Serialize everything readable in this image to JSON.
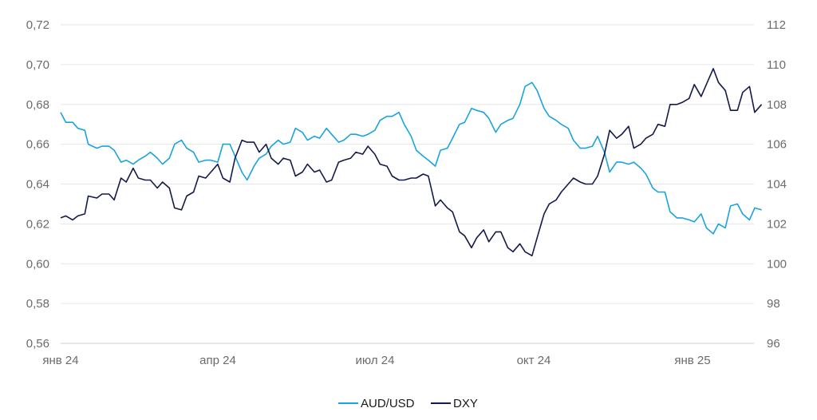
{
  "chart_data": {
    "type": "line",
    "title": "",
    "xlabel": "",
    "ylabel": "",
    "x_ticks": [
      "янв 24",
      "апр 24",
      "июл 24",
      "окт 24",
      "янв 25"
    ],
    "y_left": {
      "ticks": [
        "0,56",
        "0,58",
        "0,60",
        "0,62",
        "0,64",
        "0,66",
        "0,68",
        "0,70",
        "0,72"
      ],
      "lim": [
        0.56,
        0.72
      ]
    },
    "y_right": {
      "ticks": [
        "96",
        "98",
        "100",
        "102",
        "104",
        "106",
        "108",
        "110",
        "112"
      ],
      "lim": [
        96,
        112
      ]
    },
    "grid": true,
    "legend_position": "bottom-center",
    "series": [
      {
        "name": "AUD/USD",
        "axis": "left",
        "color": "#1aa3dd",
        "points": [
          [
            "2024-01-01",
            0.676
          ],
          [
            "2024-01-04",
            0.671
          ],
          [
            "2024-01-08",
            0.671
          ],
          [
            "2024-01-11",
            0.668
          ],
          [
            "2024-01-15",
            0.667
          ],
          [
            "2024-01-17",
            0.66
          ],
          [
            "2024-01-22",
            0.658
          ],
          [
            "2024-01-25",
            0.659
          ],
          [
            "2024-01-29",
            0.659
          ],
          [
            "2024-02-01",
            0.657
          ],
          [
            "2024-02-05",
            0.651
          ],
          [
            "2024-02-08",
            0.652
          ],
          [
            "2024-02-12",
            0.65
          ],
          [
            "2024-02-15",
            0.652
          ],
          [
            "2024-02-19",
            0.654
          ],
          [
            "2024-02-22",
            0.656
          ],
          [
            "2024-02-26",
            0.653
          ],
          [
            "2024-02-29",
            0.65
          ],
          [
            "2024-03-04",
            0.653
          ],
          [
            "2024-03-07",
            0.66
          ],
          [
            "2024-03-11",
            0.662
          ],
          [
            "2024-03-14",
            0.658
          ],
          [
            "2024-03-18",
            0.656
          ],
          [
            "2024-03-21",
            0.651
          ],
          [
            "2024-03-25",
            0.652
          ],
          [
            "2024-03-28",
            0.652
          ],
          [
            "2024-04-01",
            0.651
          ],
          [
            "2024-04-04",
            0.66
          ],
          [
            "2024-04-08",
            0.66
          ],
          [
            "2024-04-11",
            0.654
          ],
          [
            "2024-04-15",
            0.646
          ],
          [
            "2024-04-18",
            0.642
          ],
          [
            "2024-04-22",
            0.649
          ],
          [
            "2024-04-25",
            0.653
          ],
          [
            "2024-04-29",
            0.655
          ],
          [
            "2024-05-02",
            0.659
          ],
          [
            "2024-05-06",
            0.662
          ],
          [
            "2024-05-09",
            0.66
          ],
          [
            "2024-05-13",
            0.661
          ],
          [
            "2024-05-16",
            0.668
          ],
          [
            "2024-05-20",
            0.666
          ],
          [
            "2024-05-23",
            0.662
          ],
          [
            "2024-05-27",
            0.664
          ],
          [
            "2024-05-30",
            0.663
          ],
          [
            "2024-06-03",
            0.668
          ],
          [
            "2024-06-06",
            0.665
          ],
          [
            "2024-06-10",
            0.661
          ],
          [
            "2024-06-13",
            0.662
          ],
          [
            "2024-06-17",
            0.665
          ],
          [
            "2024-06-20",
            0.665
          ],
          [
            "2024-06-24",
            0.664
          ],
          [
            "2024-06-27",
            0.665
          ],
          [
            "2024-07-01",
            0.667
          ],
          [
            "2024-07-04",
            0.672
          ],
          [
            "2024-07-08",
            0.674
          ],
          [
            "2024-07-11",
            0.674
          ],
          [
            "2024-07-15",
            0.676
          ],
          [
            "2024-07-18",
            0.67
          ],
          [
            "2024-07-22",
            0.664
          ],
          [
            "2024-07-25",
            0.657
          ],
          [
            "2024-07-29",
            0.654
          ],
          [
            "2024-08-01",
            0.652
          ],
          [
            "2024-08-05",
            0.649
          ],
          [
            "2024-08-08",
            0.657
          ],
          [
            "2024-08-12",
            0.658
          ],
          [
            "2024-08-15",
            0.663
          ],
          [
            "2024-08-19",
            0.67
          ],
          [
            "2024-08-22",
            0.671
          ],
          [
            "2024-08-26",
            0.678
          ],
          [
            "2024-08-29",
            0.677
          ],
          [
            "2024-09-02",
            0.676
          ],
          [
            "2024-09-05",
            0.673
          ],
          [
            "2024-09-09",
            0.666
          ],
          [
            "2024-09-12",
            0.67
          ],
          [
            "2024-09-16",
            0.672
          ],
          [
            "2024-09-19",
            0.673
          ],
          [
            "2024-09-23",
            0.68
          ],
          [
            "2024-09-26",
            0.689
          ],
          [
            "2024-09-30",
            0.691
          ],
          [
            "2024-10-03",
            0.687
          ],
          [
            "2024-10-07",
            0.678
          ],
          [
            "2024-10-10",
            0.674
          ],
          [
            "2024-10-14",
            0.672
          ],
          [
            "2024-10-17",
            0.67
          ],
          [
            "2024-10-21",
            0.668
          ],
          [
            "2024-10-24",
            0.662
          ],
          [
            "2024-10-28",
            0.658
          ],
          [
            "2024-10-31",
            0.658
          ],
          [
            "2024-11-04",
            0.659
          ],
          [
            "2024-11-07",
            0.664
          ],
          [
            "2024-11-11",
            0.656
          ],
          [
            "2024-11-14",
            0.646
          ],
          [
            "2024-11-18",
            0.651
          ],
          [
            "2024-11-21",
            0.651
          ],
          [
            "2024-11-25",
            0.65
          ],
          [
            "2024-11-28",
            0.651
          ],
          [
            "2024-12-02",
            0.648
          ],
          [
            "2024-12-05",
            0.645
          ],
          [
            "2024-12-09",
            0.638
          ],
          [
            "2024-12-12",
            0.636
          ],
          [
            "2024-12-16",
            0.636
          ],
          [
            "2024-12-19",
            0.626
          ],
          [
            "2024-12-23",
            0.623
          ],
          [
            "2024-12-26",
            0.623
          ],
          [
            "2024-12-30",
            0.622
          ],
          [
            "2025-01-02",
            0.621
          ],
          [
            "2025-01-06",
            0.625
          ],
          [
            "2025-01-09",
            0.618
          ],
          [
            "2025-01-13",
            0.615
          ],
          [
            "2025-01-16",
            0.62
          ],
          [
            "2025-01-20",
            0.618
          ],
          [
            "2025-01-23",
            0.629
          ],
          [
            "2025-01-27",
            0.63
          ],
          [
            "2025-01-30",
            0.625
          ],
          [
            "2025-02-03",
            0.622
          ],
          [
            "2025-02-06",
            0.628
          ],
          [
            "2025-02-10",
            0.627
          ]
        ]
      },
      {
        "name": "DXY",
        "axis": "right",
        "color": "#141a4a",
        "points": [
          [
            "2024-01-01",
            102.3
          ],
          [
            "2024-01-04",
            102.4
          ],
          [
            "2024-01-08",
            102.2
          ],
          [
            "2024-01-11",
            102.4
          ],
          [
            "2024-01-15",
            102.5
          ],
          [
            "2024-01-17",
            103.4
          ],
          [
            "2024-01-22",
            103.3
          ],
          [
            "2024-01-25",
            103.5
          ],
          [
            "2024-01-29",
            103.5
          ],
          [
            "2024-02-01",
            103.2
          ],
          [
            "2024-02-05",
            104.3
          ],
          [
            "2024-02-08",
            104.1
          ],
          [
            "2024-02-12",
            104.8
          ],
          [
            "2024-02-15",
            104.3
          ],
          [
            "2024-02-19",
            104.2
          ],
          [
            "2024-02-22",
            104.2
          ],
          [
            "2024-02-26",
            103.8
          ],
          [
            "2024-02-29",
            104.1
          ],
          [
            "2024-03-04",
            103.8
          ],
          [
            "2024-03-07",
            102.8
          ],
          [
            "2024-03-11",
            102.7
          ],
          [
            "2024-03-14",
            103.4
          ],
          [
            "2024-03-18",
            103.6
          ],
          [
            "2024-03-21",
            104.4
          ],
          [
            "2024-03-25",
            104.3
          ],
          [
            "2024-03-28",
            104.6
          ],
          [
            "2024-04-01",
            105.0
          ],
          [
            "2024-04-04",
            104.3
          ],
          [
            "2024-04-08",
            104.1
          ],
          [
            "2024-04-11",
            105.3
          ],
          [
            "2024-04-15",
            106.2
          ],
          [
            "2024-04-18",
            106.1
          ],
          [
            "2024-04-22",
            106.1
          ],
          [
            "2024-04-25",
            105.6
          ],
          [
            "2024-04-29",
            106.0
          ],
          [
            "2024-05-02",
            105.3
          ],
          [
            "2024-05-06",
            105.0
          ],
          [
            "2024-05-09",
            105.3
          ],
          [
            "2024-05-13",
            105.2
          ],
          [
            "2024-05-16",
            104.4
          ],
          [
            "2024-05-20",
            104.6
          ],
          [
            "2024-05-23",
            105.0
          ],
          [
            "2024-05-27",
            104.6
          ],
          [
            "2024-05-30",
            104.7
          ],
          [
            "2024-06-03",
            104.1
          ],
          [
            "2024-06-06",
            104.2
          ],
          [
            "2024-06-10",
            105.1
          ],
          [
            "2024-06-13",
            105.2
          ],
          [
            "2024-06-17",
            105.3
          ],
          [
            "2024-06-20",
            105.6
          ],
          [
            "2024-06-24",
            105.5
          ],
          [
            "2024-06-27",
            105.9
          ],
          [
            "2024-07-01",
            105.5
          ],
          [
            "2024-07-04",
            105.0
          ],
          [
            "2024-07-08",
            104.9
          ],
          [
            "2024-07-11",
            104.4
          ],
          [
            "2024-07-15",
            104.2
          ],
          [
            "2024-07-18",
            104.2
          ],
          [
            "2024-07-22",
            104.3
          ],
          [
            "2024-07-25",
            104.3
          ],
          [
            "2024-07-29",
            104.5
          ],
          [
            "2024-08-01",
            104.4
          ],
          [
            "2024-08-05",
            102.9
          ],
          [
            "2024-08-08",
            103.2
          ],
          [
            "2024-08-12",
            102.8
          ],
          [
            "2024-08-15",
            102.6
          ],
          [
            "2024-08-19",
            101.6
          ],
          [
            "2024-08-22",
            101.4
          ],
          [
            "2024-08-26",
            100.8
          ],
          [
            "2024-08-29",
            101.3
          ],
          [
            "2024-09-02",
            101.7
          ],
          [
            "2024-09-05",
            101.1
          ],
          [
            "2024-09-09",
            101.6
          ],
          [
            "2024-09-12",
            101.6
          ],
          [
            "2024-09-16",
            100.8
          ],
          [
            "2024-09-19",
            100.6
          ],
          [
            "2024-09-23",
            101.0
          ],
          [
            "2024-09-26",
            100.6
          ],
          [
            "2024-09-30",
            100.4
          ],
          [
            "2024-10-03",
            101.3
          ],
          [
            "2024-10-07",
            102.5
          ],
          [
            "2024-10-10",
            103.0
          ],
          [
            "2024-10-14",
            103.2
          ],
          [
            "2024-10-17",
            103.6
          ],
          [
            "2024-10-21",
            104.0
          ],
          [
            "2024-10-24",
            104.3
          ],
          [
            "2024-10-28",
            104.1
          ],
          [
            "2024-10-31",
            104.0
          ],
          [
            "2024-11-04",
            104.0
          ],
          [
            "2024-11-07",
            104.4
          ],
          [
            "2024-11-11",
            105.5
          ],
          [
            "2024-11-14",
            106.7
          ],
          [
            "2024-11-18",
            106.3
          ],
          [
            "2024-11-21",
            106.5
          ],
          [
            "2024-11-25",
            106.9
          ],
          [
            "2024-11-28",
            105.8
          ],
          [
            "2024-12-02",
            106.0
          ],
          [
            "2024-12-05",
            106.3
          ],
          [
            "2024-12-09",
            106.5
          ],
          [
            "2024-12-12",
            107.0
          ],
          [
            "2024-12-16",
            106.9
          ],
          [
            "2024-12-19",
            108.0
          ],
          [
            "2024-12-23",
            108.0
          ],
          [
            "2024-12-26",
            108.1
          ],
          [
            "2024-12-30",
            108.3
          ],
          [
            "2025-01-02",
            109.0
          ],
          [
            "2025-01-06",
            108.4
          ],
          [
            "2025-01-09",
            109.0
          ],
          [
            "2025-01-13",
            109.8
          ],
          [
            "2025-01-16",
            109.1
          ],
          [
            "2025-01-20",
            108.7
          ],
          [
            "2025-01-23",
            107.7
          ],
          [
            "2025-01-27",
            107.7
          ],
          [
            "2025-01-30",
            108.6
          ],
          [
            "2025-02-03",
            108.9
          ],
          [
            "2025-02-06",
            107.6
          ],
          [
            "2025-02-10",
            108.0
          ]
        ]
      }
    ]
  }
}
